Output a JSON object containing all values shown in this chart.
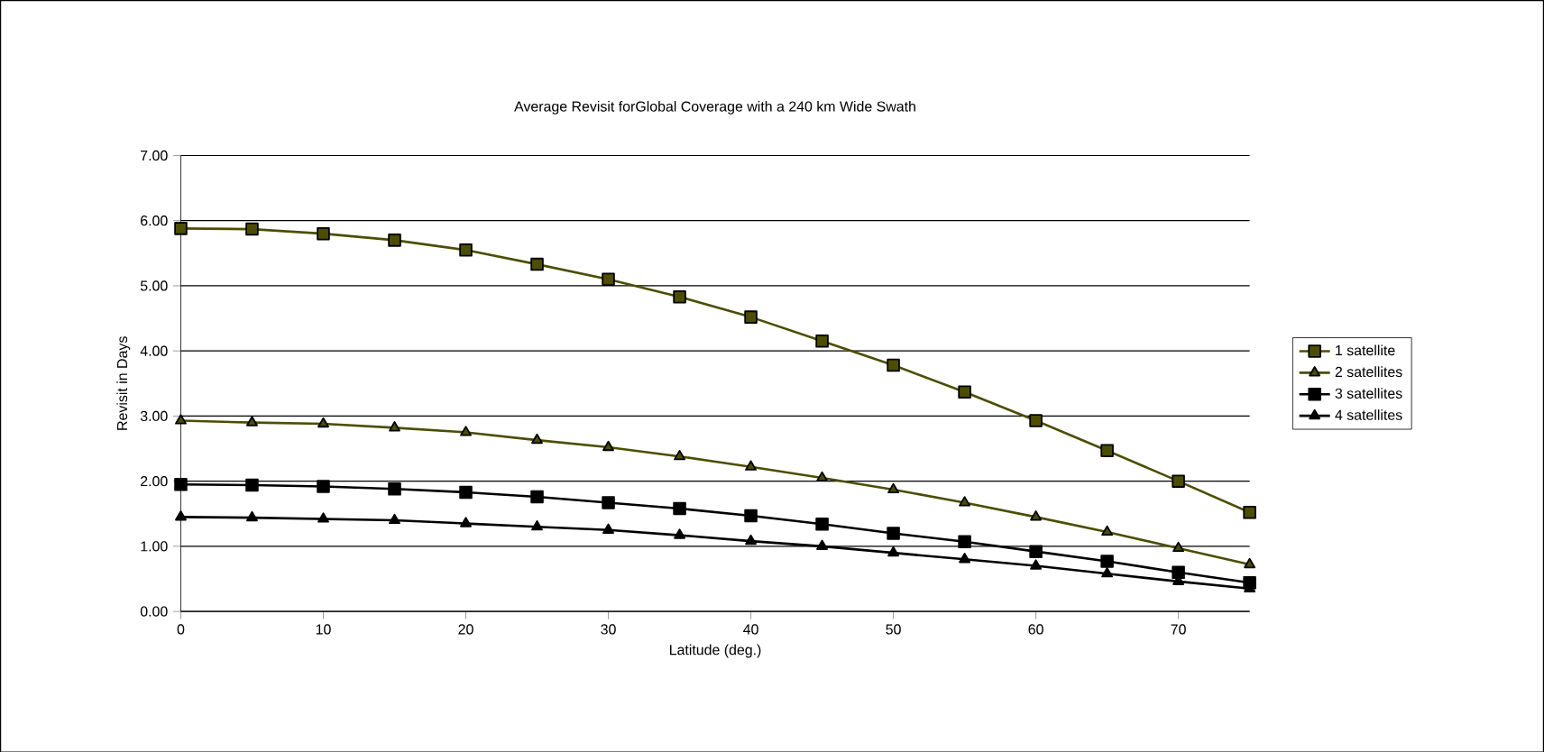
{
  "chart_data": {
    "type": "line",
    "title": "Average Revisit forGlobal Coverage with a 240 km Wide Swath",
    "xlabel": "Latitude (deg.)",
    "ylabel": "Revisit in Days",
    "x": [
      0,
      5,
      10,
      15,
      20,
      25,
      30,
      35,
      40,
      45,
      50,
      55,
      60,
      65,
      70,
      75
    ],
    "xlim": [
      0,
      75
    ],
    "xticks": [
      0,
      10,
      20,
      30,
      40,
      50,
      60,
      70
    ],
    "ylim": [
      0,
      7
    ],
    "yticks": [
      {
        "value": 0,
        "label": "0.00"
      },
      {
        "value": 1,
        "label": "1.00"
      },
      {
        "value": 2,
        "label": "2.00"
      },
      {
        "value": 3,
        "label": "3.00"
      },
      {
        "value": 4,
        "label": "4.00"
      },
      {
        "value": 5,
        "label": "5.00"
      },
      {
        "value": 6,
        "label": "6.00"
      },
      {
        "value": 7,
        "label": "7.00"
      }
    ],
    "grid": "y",
    "legend": "right",
    "line_style": "solid",
    "series": [
      {
        "name": "1 satellite",
        "color": "#4d4d00",
        "marker": "square",
        "values": [
          5.88,
          5.87,
          5.8,
          5.7,
          5.55,
          5.33,
          5.1,
          4.83,
          4.52,
          4.15,
          3.78,
          3.37,
          2.93,
          2.47,
          2.0,
          1.52
        ]
      },
      {
        "name": "2 satellites",
        "color": "#4d4d00",
        "marker": "triangle",
        "values": [
          2.93,
          2.9,
          2.88,
          2.82,
          2.75,
          2.63,
          2.52,
          2.38,
          2.22,
          2.05,
          1.87,
          1.67,
          1.45,
          1.22,
          0.97,
          0.72
        ]
      },
      {
        "name": "3 satellites",
        "color": "#000000",
        "marker": "square",
        "values": [
          1.95,
          1.94,
          1.92,
          1.88,
          1.83,
          1.76,
          1.67,
          1.58,
          1.47,
          1.34,
          1.2,
          1.07,
          0.92,
          0.77,
          0.6,
          0.44
        ]
      },
      {
        "name": "4 satellites",
        "color": "#000000",
        "marker": "triangle",
        "values": [
          1.45,
          1.44,
          1.42,
          1.4,
          1.35,
          1.3,
          1.25,
          1.17,
          1.08,
          1.0,
          0.9,
          0.8,
          0.7,
          0.58,
          0.46,
          0.35
        ]
      }
    ]
  }
}
